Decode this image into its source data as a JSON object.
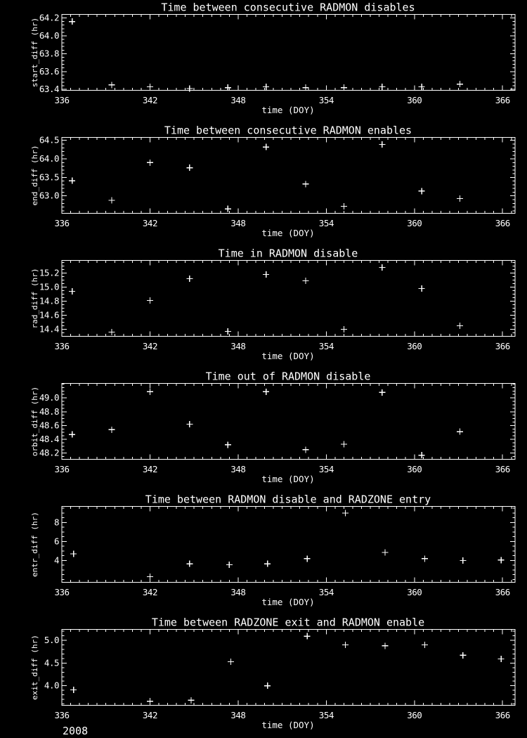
{
  "page": {
    "background": "#000000",
    "foreground": "#ffffff",
    "year_label": "2008"
  },
  "chart_data": [
    {
      "type": "scatter",
      "title": "Time between consecutive RADMON disables",
      "xlabel": "time (DOY)",
      "ylabel": "start_diff (hr)",
      "marker": "plus",
      "grid": false,
      "xlim": [
        336,
        366.85
      ],
      "xticks": [
        336,
        342,
        348,
        354,
        360,
        366
      ],
      "x_minor_step": 0.6,
      "ylim": [
        63.39,
        64.24
      ],
      "yticks": [
        63.4,
        63.6,
        63.8,
        64.0,
        64.2
      ],
      "ytick_labels": [
        "63.4",
        "63.6",
        "63.8",
        "64.0",
        "64.2"
      ],
      "y_minor_step": 0.04,
      "x": [
        336.7,
        339.4,
        342.0,
        344.7,
        347.3,
        349.9,
        352.6,
        355.2,
        357.8,
        360.5,
        363.1
      ],
      "y": [
        64.16,
        63.45,
        63.43,
        63.41,
        63.42,
        63.43,
        63.42,
        63.42,
        63.43,
        63.43,
        63.46
      ]
    },
    {
      "type": "scatter",
      "title": "Time between consecutive RADMON enables",
      "xlabel": "time (DOY)",
      "ylabel": "end_diff (hr)",
      "marker": "plus",
      "grid": false,
      "xlim": [
        336,
        366.85
      ],
      "xticks": [
        336,
        342,
        348,
        354,
        360,
        366
      ],
      "x_minor_step": 0.6,
      "ylim": [
        62.53,
        64.58
      ],
      "yticks": [
        63.0,
        63.5,
        64.0,
        64.5
      ],
      "ytick_labels": [
        "63.0",
        "63.5",
        "64.0",
        "64.5"
      ],
      "y_minor_step": 0.1,
      "x": [
        336.7,
        339.4,
        342.0,
        344.7,
        347.3,
        349.9,
        352.6,
        355.2,
        357.8,
        360.5,
        363.1
      ],
      "y": [
        63.41,
        62.88,
        63.9,
        63.76,
        62.65,
        64.32,
        63.32,
        62.72,
        64.39,
        63.13,
        62.93
      ]
    },
    {
      "type": "scatter",
      "title": "Time in RADMON disable",
      "xlabel": "time (DOY)",
      "ylabel": "rad_diff (hr)",
      "marker": "plus",
      "grid": false,
      "xlim": [
        336,
        366.85
      ],
      "xticks": [
        336,
        342,
        348,
        354,
        360,
        366
      ],
      "x_minor_step": 0.6,
      "ylim": [
        14.3,
        15.38
      ],
      "yticks": [
        14.4,
        14.6,
        14.8,
        15.0,
        15.2
      ],
      "ytick_labels": [
        "14.4",
        "14.6",
        "14.8",
        "15.0",
        "15.2"
      ],
      "y_minor_step": 0.05,
      "x": [
        336.7,
        339.4,
        342.0,
        344.7,
        347.3,
        349.9,
        352.6,
        355.2,
        357.8,
        360.5,
        363.1
      ],
      "y": [
        14.94,
        14.36,
        14.81,
        15.12,
        14.37,
        15.18,
        15.09,
        14.4,
        15.28,
        14.98,
        14.45
      ]
    },
    {
      "type": "scatter",
      "title": "Time out of RADMON disable",
      "xlabel": "time (DOY)",
      "ylabel": "orbit_diff (hr)",
      "marker": "plus",
      "grid": false,
      "xlim": [
        336,
        366.85
      ],
      "xticks": [
        336,
        342,
        348,
        354,
        360,
        366
      ],
      "x_minor_step": 0.6,
      "ylim": [
        48.11,
        49.21
      ],
      "yticks": [
        48.2,
        48.4,
        48.6,
        48.8,
        49.0
      ],
      "ytick_labels": [
        "48.2",
        "48.4",
        "48.6",
        "48.8",
        "49.0"
      ],
      "y_minor_step": 0.05,
      "x": [
        336.7,
        339.4,
        342.0,
        344.7,
        347.3,
        349.9,
        352.6,
        355.2,
        357.8,
        360.5,
        363.1
      ],
      "y": [
        48.47,
        48.54,
        49.09,
        48.62,
        48.32,
        49.09,
        48.25,
        48.33,
        49.08,
        48.17,
        48.51
      ]
    },
    {
      "type": "scatter",
      "title": "Time between RADMON disable and RADZONE entry",
      "xlabel": "time (DOY)",
      "ylabel": "entr_diff (hr)",
      "marker": "plus",
      "grid": false,
      "xlim": [
        336,
        366.85
      ],
      "xticks": [
        336,
        342,
        348,
        354,
        360,
        366
      ],
      "x_minor_step": 0.6,
      "ylim": [
        1.7,
        9.7
      ],
      "yticks": [
        4,
        6,
        8
      ],
      "ytick_labels": [
        "4",
        "6",
        "8"
      ],
      "y_minor_step": 0.5,
      "x": [
        336.8,
        342.0,
        344.7,
        347.4,
        350.0,
        352.7,
        355.3,
        358.0,
        360.7,
        363.3,
        365.9
      ],
      "y": [
        4.7,
        2.3,
        3.65,
        3.55,
        3.65,
        4.2,
        9.0,
        4.85,
        4.2,
        4.0,
        4.05
      ]
    },
    {
      "type": "scatter",
      "title": "Time between RADZONE exit and RADMON enable",
      "xlabel": "time (DOY)",
      "ylabel": "exit_diff (hr)",
      "marker": "plus",
      "grid": false,
      "xlim": [
        336,
        366.85
      ],
      "xticks": [
        336,
        342,
        348,
        354,
        360,
        366
      ],
      "x_minor_step": 0.6,
      "ylim": [
        3.57,
        5.24
      ],
      "yticks": [
        4.0,
        4.5,
        5.0
      ],
      "ytick_labels": [
        "4.0",
        "4.5",
        "5.0"
      ],
      "y_minor_step": 0.1,
      "x": [
        336.8,
        342.0,
        344.8,
        347.5,
        350.0,
        352.7,
        355.3,
        358.0,
        360.7,
        363.3,
        365.9
      ],
      "y": [
        3.91,
        3.66,
        3.68,
        4.53,
        4.0,
        5.09,
        4.9,
        4.88,
        4.9,
        4.67,
        4.59
      ]
    }
  ]
}
